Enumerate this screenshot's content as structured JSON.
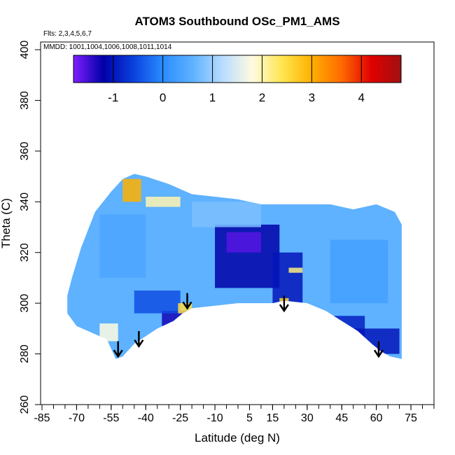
{
  "chart_data": {
    "type": "heatmap",
    "title": "ATOM3 Southbound OSc_PM1_AMS",
    "flights_label": "Flts: 2,3,4,5,6,7",
    "dates_label": "MMDD: 1001,1004,1006,1008,1011,1014",
    "xlabel": "Latitude (deg N)",
    "ylabel": "Theta (C)",
    "xlim": [
      -85,
      85
    ],
    "ylim": [
      260,
      405
    ],
    "x_tick_labels": [
      "-85",
      "-70",
      "-55",
      "-40",
      "-25",
      "-10",
      "5",
      "15",
      "30",
      "45",
      "60",
      "75"
    ],
    "x_tick_values": [
      -85,
      -70,
      -55,
      -40,
      -25,
      -10,
      5,
      15,
      30,
      45,
      60,
      75
    ],
    "x_minor_step": 5,
    "y_ticks": [
      260,
      280,
      300,
      320,
      340,
      360,
      380,
      400
    ],
    "grid": false,
    "colorbar": {
      "placement": "top-inside",
      "range": [
        -1.8,
        4.8
      ],
      "ticks": [
        -1,
        0,
        1,
        2,
        3,
        4
      ],
      "colors": [
        "#7f1fff",
        "#0000a8",
        "#0a40dd",
        "#2a8cff",
        "#5eb2ff",
        "#b8dcff",
        "#fffbe0",
        "#ffe650",
        "#ffb000",
        "#ff6a00",
        "#e00000",
        "#a01010"
      ]
    },
    "outline": {
      "bottom": [
        [
          -53,
          278
        ],
        [
          -50,
          279
        ],
        [
          -45,
          284
        ],
        [
          -40,
          287
        ],
        [
          -35,
          290
        ],
        [
          -28,
          293
        ],
        [
          -24,
          296
        ],
        [
          -20,
          298
        ],
        [
          -10,
          299
        ],
        [
          0,
          300
        ],
        [
          15,
          300
        ],
        [
          20,
          301
        ],
        [
          30,
          300
        ],
        [
          38,
          297
        ],
        [
          45,
          293
        ],
        [
          52,
          289
        ],
        [
          58,
          284
        ],
        [
          62,
          281
        ],
        [
          66,
          279
        ],
        [
          71,
          278
        ]
      ],
      "top": [
        [
          71,
          331
        ],
        [
          68,
          336
        ],
        [
          60,
          339
        ],
        [
          50,
          337
        ],
        [
          40,
          339
        ],
        [
          30,
          339
        ],
        [
          20,
          339
        ],
        [
          10,
          339
        ],
        [
          0,
          341
        ],
        [
          -10,
          342
        ],
        [
          -20,
          343
        ],
        [
          -30,
          347
        ],
        [
          -40,
          350
        ],
        [
          -45,
          351
        ],
        [
          -50,
          349
        ],
        [
          -55,
          344
        ],
        [
          -62,
          336
        ],
        [
          -68,
          322
        ],
        [
          -72,
          310
        ],
        [
          -74,
          303
        ],
        [
          -74,
          296
        ],
        [
          -70,
          291
        ],
        [
          -65,
          289
        ],
        [
          -60,
          287
        ],
        [
          -57,
          286
        ],
        [
          -55,
          282
        ],
        [
          -53,
          278
        ]
      ]
    },
    "patches": [
      {
        "x": [
          -10,
          18
        ],
        "y": [
          306,
          331
        ],
        "value": -1.2
      },
      {
        "x": [
          -5,
          10
        ],
        "y": [
          320,
          328
        ],
        "value": -1.6
      },
      {
        "x": [
          15,
          28
        ],
        "y": [
          300,
          320
        ],
        "value": -1.0
      },
      {
        "x": [
          -33,
          -22
        ],
        "y": [
          291,
          297
        ],
        "value": -1.3
      },
      {
        "x": [
          -45,
          -25
        ],
        "y": [
          296,
          305
        ],
        "value": -0.5
      },
      {
        "x": [
          35,
          55
        ],
        "y": [
          282,
          295
        ],
        "value": -0.9
      },
      {
        "x": [
          50,
          70
        ],
        "y": [
          280,
          290
        ],
        "value": -1.0
      },
      {
        "x": [
          -60,
          -40
        ],
        "y": [
          310,
          335
        ],
        "value": 0.4
      },
      {
        "x": [
          40,
          65
        ],
        "y": [
          300,
          325
        ],
        "value": 0.3
      },
      {
        "x": [
          -20,
          10
        ],
        "y": [
          330,
          340
        ],
        "value": 0.8
      },
      {
        "x": [
          -50,
          -42
        ],
        "y": [
          340,
          349
        ],
        "value": 3.0
      },
      {
        "x": [
          -40,
          -25
        ],
        "y": [
          338,
          342
        ],
        "value": 2.0
      },
      {
        "x": [
          -60,
          -52
        ],
        "y": [
          285,
          292
        ],
        "value": 1.8
      },
      {
        "x": [
          -26,
          -20
        ],
        "y": [
          296,
          300
        ],
        "value": 2.5
      },
      {
        "x": [
          18,
          22
        ],
        "y": [
          300,
          302
        ],
        "value": 2.6
      },
      {
        "x": [
          22,
          28
        ],
        "y": [
          312,
          314
        ],
        "value": 2.2
      }
    ],
    "arrows": [
      {
        "x": -52,
        "y_top": 285,
        "y_bottom": 279
      },
      {
        "x": -43,
        "y_top": 289,
        "y_bottom": 283
      },
      {
        "x": -22,
        "y_top": 304,
        "y_bottom": 298
      },
      {
        "x": 20,
        "y_top": 303,
        "y_bottom": 297
      },
      {
        "x": 61,
        "y_top": 285,
        "y_bottom": 279
      }
    ]
  }
}
